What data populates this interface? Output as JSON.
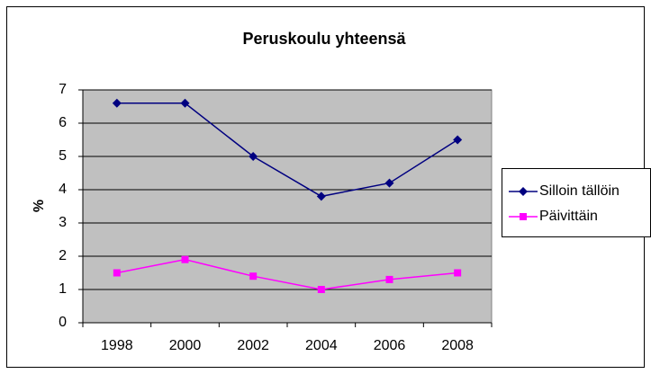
{
  "chart_data": {
    "type": "line",
    "title": "Peruskoulu yhteensä",
    "ylabel": "%",
    "categories": [
      "1998",
      "2000",
      "2002",
      "2004",
      "2006",
      "2008"
    ],
    "series": [
      {
        "name": "Silloin tällöin",
        "color": "#000080",
        "marker": "diamond",
        "values": [
          6.6,
          6.6,
          5.0,
          3.8,
          4.2,
          5.5
        ]
      },
      {
        "name": "Päivittäin",
        "color": "#ff00ff",
        "marker": "square",
        "values": [
          1.5,
          1.9,
          1.4,
          1.0,
          1.3,
          1.5
        ]
      }
    ],
    "ylim": [
      0,
      7
    ],
    "yticks": [
      0,
      1,
      2,
      3,
      4,
      5,
      6,
      7
    ],
    "grid": true,
    "legend": "right"
  }
}
